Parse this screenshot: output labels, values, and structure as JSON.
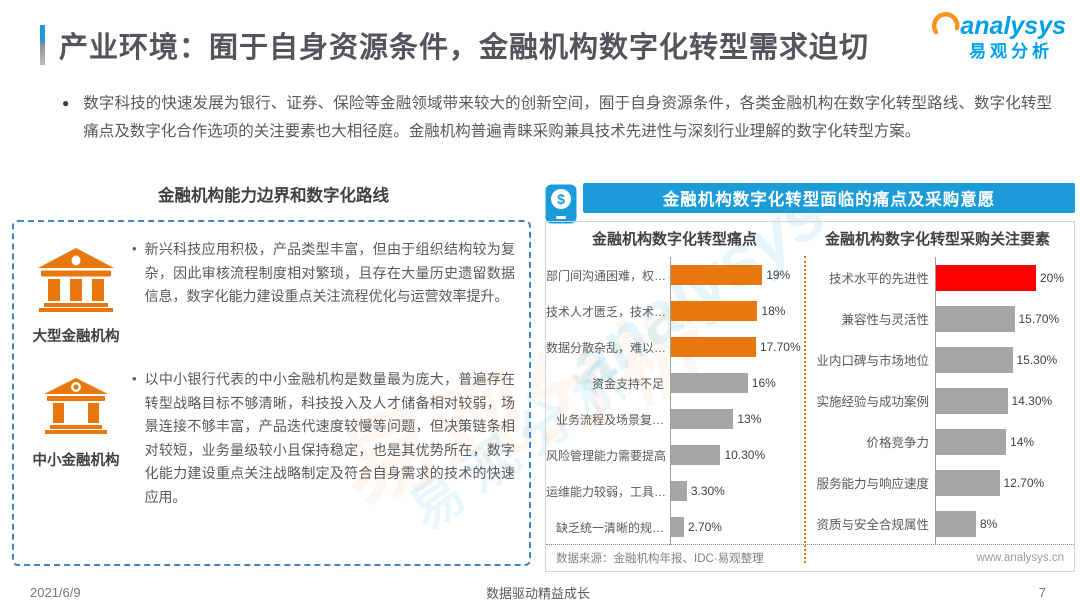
{
  "page": {
    "title": "产业环境：囿于自身资源条件，金融机构数字化转型需求迫切",
    "intro": "数字科技的快速发展为银行、证券、保险等金融领域带来较大的创新空间，囿于自身资源条件，各类金融机构在数字化转型路线、数字化转型痛点及数字化合作选项的关注要素也大相径庭。金融机构普遍青睐采购兼具技术先进性与深刻行业理解的数字化转型方案。",
    "footer": {
      "date": "2021/6/9",
      "center": "数据驱动精益成长",
      "page_number": "7"
    }
  },
  "logo": {
    "name_en": "analysys",
    "name_cn": "易观分析"
  },
  "watermarks": {
    "brand_en": "analysys",
    "brand_cn": "易观分析"
  },
  "left_panel": {
    "heading": "金融机构能力边界和数字化路线",
    "items": [
      {
        "icon": "bank-large-icon",
        "label": "大型金融机构",
        "text": "新兴科技应用积极，产品类型丰富，但由于组织结构较为复杂，因此审核流程制度相对繁琐，且存在大量历史遗留数据信息，数字化能力建设重点关注流程优化与运营效率提升。"
      },
      {
        "icon": "bank-small-icon",
        "label": "中小金融机构",
        "text": "以中小银行代表的中小金融机构是数量最为庞大，普遍存在转型战略目标不够清晰，科技投入及人才储备相对较弱，场景连接不够丰富，产品迭代速度较慢等问题，但决策链条相对较短，业务量级较小且保持稳定，也是其优势所在，数字化能力建设重点关注战略制定及符合自身需求的技术的快速应用。"
      }
    ]
  },
  "right_panel": {
    "header": "金融机构数字化转型面临的痛点及采购意愿",
    "source": "数据来源：金融机构年报、IDC·易观整理",
    "website": "www.analysys.cn"
  },
  "colors": {
    "accent_blue": "#1B9CD8",
    "orange": "#E8770D",
    "red": "#FE0000",
    "gray_bar": "#A6A6A6",
    "dashed_border_blue": "#3E86C6"
  },
  "chart_data": [
    {
      "type": "bar",
      "orientation": "horizontal",
      "title": "金融机构数字化转型痛点",
      "categories": [
        "部门间沟通困难，权…",
        "技术人才匮乏，技术…",
        "数据分散杂乱，难以…",
        "资金支持不足",
        "业务流程及场景复…",
        "风险管理能力需要提高",
        "运维能力较弱，工具…",
        "缺乏统一清晰的规…"
      ],
      "values": [
        19,
        18,
        17.7,
        16,
        13,
        10.3,
        3.3,
        2.7
      ],
      "value_labels": [
        "19%",
        "18%",
        "17.70%",
        "16%",
        "13%",
        "10.30%",
        "3.30%",
        "2.70%"
      ],
      "bar_colors": [
        "#E8770D",
        "#E8770D",
        "#E8770D",
        "#A6A6A6",
        "#A6A6A6",
        "#A6A6A6",
        "#A6A6A6",
        "#A6A6A6"
      ],
      "xlim": [
        0,
        20
      ],
      "grid": false,
      "legend": false
    },
    {
      "type": "bar",
      "orientation": "horizontal",
      "title": "金融机构数字化转型采购关注要素",
      "categories": [
        "技术水平的先进性",
        "兼容性与灵活性",
        "业内口碑与市场地位",
        "实施经验与成功案例",
        "价格竞争力",
        "服务能力与响应速度",
        "资质与安全合规属性"
      ],
      "values": [
        20,
        15.7,
        15.3,
        14.3,
        14,
        12.7,
        8
      ],
      "value_labels": [
        "20%",
        "15.70%",
        "15.30%",
        "14.30%",
        "14%",
        "12.70%",
        "8%"
      ],
      "bar_colors": [
        "#FE0000",
        "#A6A6A6",
        "#A6A6A6",
        "#A6A6A6",
        "#A6A6A6",
        "#A6A6A6",
        "#A6A6A6"
      ],
      "xlim": [
        0,
        20
      ],
      "grid": false,
      "legend": false
    }
  ]
}
